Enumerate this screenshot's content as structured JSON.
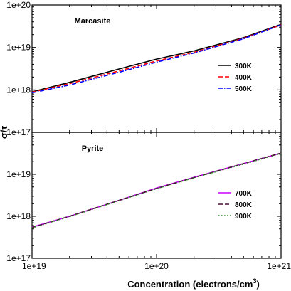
{
  "chart_data": [
    {
      "type": "line",
      "panel_label": "Marcasite",
      "ylabel": "σ/τ",
      "yscale": "log",
      "ylim": [
        1e+17,
        1e+20
      ],
      "y_tick_labels": [
        "1e+20",
        "1e+19",
        "1e+18",
        "1e+17"
      ],
      "xscale": "log",
      "xlim": [
        1e+19,
        1e+21
      ],
      "legend_position": "lower-right",
      "x": [
        1e+19,
        2e+19,
        5e+19,
        1e+20,
        2e+20,
        5e+20,
        1e+21
      ],
      "series": [
        {
          "name": "300K",
          "color": "#000000",
          "dash": "solid",
          "values": [
            9e+17,
            1.5e+18,
            3.1e+18,
            5.3e+18,
            8.3e+18,
            1.7e+19,
            3.5e+19
          ]
        },
        {
          "name": "400K",
          "color": "#ff0000",
          "dash": "dashed",
          "values": [
            8.8e+17,
            1.4e+18,
            2.8e+18,
            4.8e+18,
            7.7e+18,
            1.65e+19,
            3.4e+19
          ]
        },
        {
          "name": "500K",
          "color": "#0000ff",
          "dash": "dashdot",
          "values": [
            8.5e+17,
            1.3e+18,
            2.6e+18,
            4.5e+18,
            7.4e+18,
            1.6e+19,
            3.4e+19
          ]
        }
      ]
    },
    {
      "type": "line",
      "panel_label": "Pyrite",
      "yscale": "log",
      "ylim": [
        1e+17,
        1e+20
      ],
      "y_tick_labels": [
        "1e+19",
        "1e+18",
        "1e+17"
      ],
      "xscale": "log",
      "xlim": [
        1e+19,
        1e+21
      ],
      "x_tick_labels": [
        "1e+19",
        "1e+20",
        "1e+21"
      ],
      "xlabel": "Concentration (electrons/cm",
      "xlabel_superscript": "3",
      "xlabel_suffix": ")",
      "legend_position": "lower-right",
      "x": [
        1e+19,
        2e+19,
        5e+19,
        1e+20,
        2e+20,
        5e+20,
        1e+21
      ],
      "series": [
        {
          "name": "700K",
          "color": "#cc00ff",
          "dash": "solid",
          "values": [
            5.5e+17,
            1e+18,
            2.4e+18,
            4.7e+18,
            8.5e+18,
            1.8e+19,
            3.2e+19
          ]
        },
        {
          "name": "800K",
          "color": "#4b0a35",
          "dash": "dashed",
          "values": [
            5.4e+17,
            1e+18,
            2.4e+18,
            4.6e+18,
            8.4e+18,
            1.8e+19,
            3.2e+19
          ]
        },
        {
          "name": "900K",
          "color": "#2e8b2e",
          "dash": "dotted",
          "values": [
            5.3e+17,
            9.8e+17,
            2.35e+18,
            4.55e+18,
            8.3e+18,
            1.75e+19,
            3.15e+19
          ]
        }
      ]
    }
  ]
}
